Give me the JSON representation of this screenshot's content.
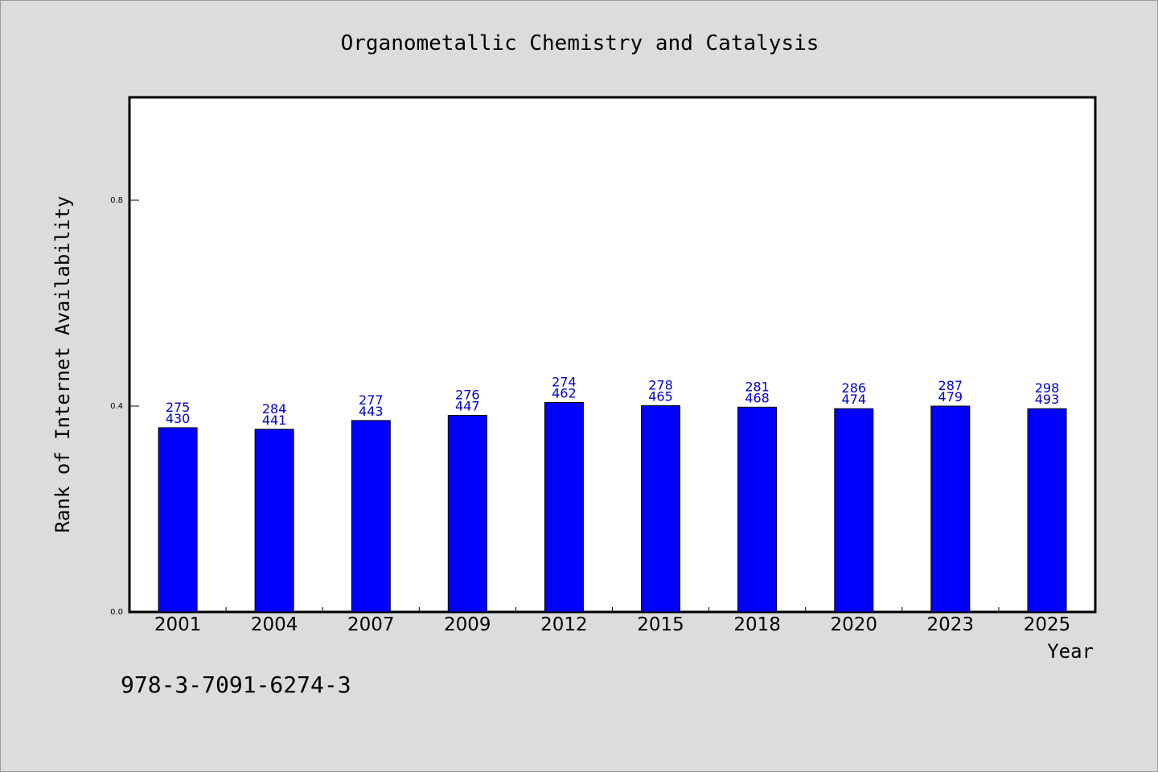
{
  "chart_data": {
    "type": "bar",
    "title": "Organometallic Chemistry and Catalysis",
    "xlabel": "Year",
    "ylabel": "Rank of Internet Availability",
    "categories": [
      "2001",
      "2004",
      "2007",
      "2009",
      "2012",
      "2015",
      "2018",
      "2020",
      "2023",
      "2025"
    ],
    "series": [
      {
        "values": [
          0.358,
          0.355,
          0.372,
          0.382,
          0.407,
          0.401,
          0.398,
          0.395,
          0.4,
          0.395
        ],
        "color": "#0000ff"
      }
    ],
    "data_labels": [
      [
        "275",
        "430"
      ],
      [
        "284",
        "441"
      ],
      [
        "277",
        "443"
      ],
      [
        "276",
        "447"
      ],
      [
        "274",
        "462"
      ],
      [
        "278",
        "465"
      ],
      [
        "281",
        "468"
      ],
      [
        "286",
        "474"
      ],
      [
        "287",
        "479"
      ],
      [
        "298",
        "493"
      ]
    ],
    "ylim": [
      0,
      1.0
    ],
    "yticks": [
      "0.0",
      "0.4",
      "0.8"
    ],
    "ytick_values": [
      0,
      0.4,
      0.8
    ],
    "grid": false,
    "label_color": "#0000cc"
  },
  "footnote": "978-3-7091-6274-3"
}
